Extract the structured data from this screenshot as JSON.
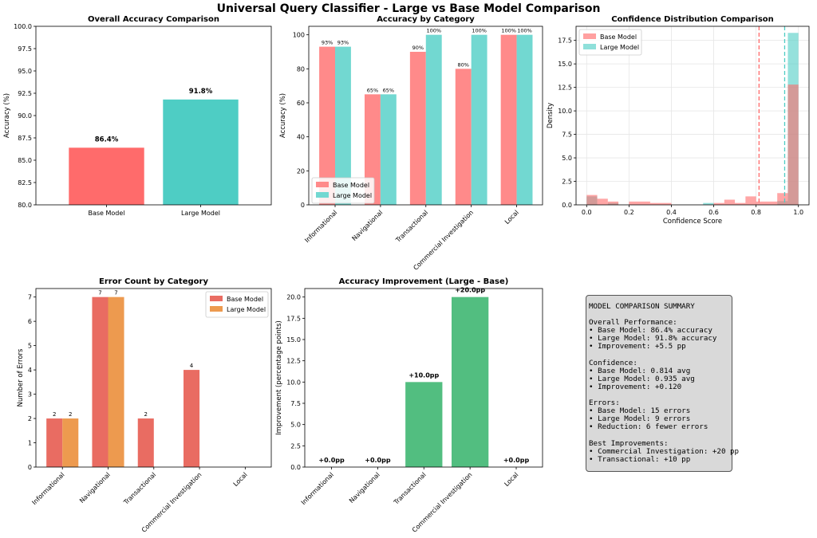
{
  "title": "Universal Query Classifier - Large vs Base Model Comparison",
  "colors": {
    "base": "#ff6b6b",
    "large": "#4ecdc4",
    "base_light": "#ff8a8a",
    "large_light": "#72d8d1",
    "err_base": "#e96c62",
    "err_large": "#ed9a4f",
    "improve": "#52be80"
  },
  "chart_data": [
    {
      "id": "overall",
      "type": "bar",
      "title": "Overall Accuracy Comparison",
      "categories": [
        "Base Model",
        "Large Model"
      ],
      "values": [
        86.4,
        91.8
      ],
      "value_labels": [
        "86.4%",
        "91.8%"
      ],
      "ylabel": "Accuracy (%)",
      "ylim": [
        80,
        100
      ],
      "yticks": [
        "80.0",
        "82.5",
        "85.0",
        "87.5",
        "90.0",
        "92.5",
        "95.0",
        "97.5",
        "100.0"
      ]
    },
    {
      "id": "category",
      "type": "bar",
      "title": "Accuracy by Category",
      "categories": [
        "Informational",
        "Navigational",
        "Transactional",
        "Commercial Investigation",
        "Local"
      ],
      "series": [
        {
          "name": "Base Model",
          "values": [
            93,
            65,
            90,
            80,
            100
          ],
          "labels": [
            "93%",
            "65%",
            "90%",
            "80%",
            "100%"
          ]
        },
        {
          "name": "Large Model",
          "values": [
            93,
            65,
            100,
            100,
            100
          ],
          "labels": [
            "93%",
            "65%",
            "100%",
            "100%",
            "100%"
          ]
        }
      ],
      "ylabel": "Accuracy (%)",
      "ylim": [
        0,
        105
      ],
      "yticks": [
        "0",
        "20",
        "40",
        "60",
        "80",
        "100"
      ],
      "legend_position": "lower-left"
    },
    {
      "id": "confidence",
      "type": "histogram",
      "title": "Confidence Distribution Comparison",
      "xlabel": "Confidence Score",
      "ylabel": "Density",
      "xlim": [
        -0.05,
        1.05
      ],
      "ylim": [
        0,
        19
      ],
      "xticks": [
        "0.0",
        "0.2",
        "0.4",
        "0.6",
        "0.8",
        "1.0"
      ],
      "yticks": [
        "0.0",
        "2.5",
        "5.0",
        "7.5",
        "10.0",
        "12.5",
        "15.0",
        "17.5"
      ],
      "grid": true,
      "legend_position": "top-left",
      "series": [
        {
          "name": "Base Model",
          "bins": [
            [
              0.0,
              0.05,
              1.05
            ],
            [
              0.05,
              0.1,
              0.65
            ],
            [
              0.1,
              0.15,
              0.35
            ],
            [
              0.15,
              0.2,
              0.0
            ],
            [
              0.2,
              0.3,
              0.35
            ],
            [
              0.3,
              0.4,
              0.2
            ],
            [
              0.6,
              0.65,
              0.2
            ],
            [
              0.65,
              0.7,
              0.55
            ],
            [
              0.7,
              0.75,
              0.2
            ],
            [
              0.75,
              0.8,
              0.9
            ],
            [
              0.8,
              0.9,
              0.35
            ],
            [
              0.9,
              0.95,
              1.25
            ],
            [
              0.95,
              1.0,
              12.8
            ]
          ],
          "mean": 0.814
        },
        {
          "name": "Large Model",
          "bins": [
            [
              0.0,
              0.05,
              0.9
            ],
            [
              0.1,
              0.15,
              0.2
            ],
            [
              0.55,
              0.6,
              0.2
            ],
            [
              0.9,
              0.95,
              0.4
            ],
            [
              0.95,
              1.0,
              18.3
            ]
          ],
          "mean": 0.935
        }
      ]
    },
    {
      "id": "errors",
      "type": "bar",
      "title": "Error Count by Category",
      "categories": [
        "Informational",
        "Navigational",
        "Transactional",
        "Commercial Investigation",
        "Local"
      ],
      "series": [
        {
          "name": "Base Model",
          "values": [
            2,
            7,
            2,
            4,
            0
          ]
        },
        {
          "name": "Large Model",
          "values": [
            2,
            7,
            0,
            0,
            0
          ]
        }
      ],
      "ylabel": "Number of Errors",
      "ylim": [
        0,
        7.35
      ],
      "yticks": [
        "0",
        "1",
        "2",
        "3",
        "4",
        "5",
        "6",
        "7"
      ],
      "legend_position": "top-right"
    },
    {
      "id": "improvement",
      "type": "bar",
      "title": "Accuracy Improvement (Large - Base)",
      "categories": [
        "Informational",
        "Navigational",
        "Transactional",
        "Commercial Investigation",
        "Local"
      ],
      "values": [
        0,
        0,
        10,
        20,
        0
      ],
      "value_labels": [
        "+0.0pp",
        "+0.0pp",
        "+10.0pp",
        "+20.0pp",
        "+0.0pp"
      ],
      "ylabel": "Improvement (percentage points)",
      "ylim": [
        0,
        21
      ],
      "yticks": [
        "0.0",
        "2.5",
        "5.0",
        "7.5",
        "10.0",
        "12.5",
        "15.0",
        "17.5",
        "20.0"
      ]
    }
  ],
  "summary": {
    "lines": [
      "MODEL COMPARISON SUMMARY",
      "",
      "Overall Performance:",
      "• Base Model: 86.4% accuracy",
      "• Large Model: 91.8% accuracy",
      "• Improvement: +5.5 pp",
      "",
      "Confidence:",
      "• Base Model: 0.814 avg",
      "• Large Model: 0.935 avg",
      "• Improvement: +0.120",
      "",
      "Errors:",
      "• Base Model: 15 errors",
      "• Large Model: 9 errors",
      "• Reduction: 6 fewer errors",
      "",
      "Best Improvements:",
      "• Commercial Investigation: +20 pp",
      "• Transactional: +10 pp"
    ]
  }
}
